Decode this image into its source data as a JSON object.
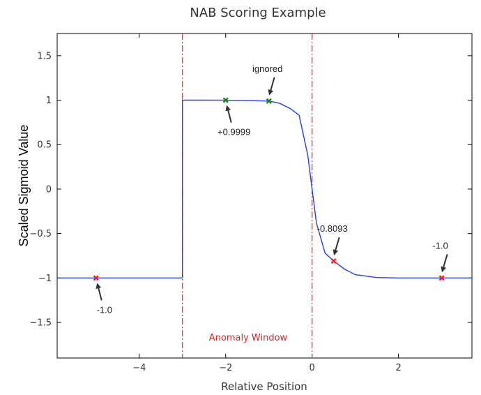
{
  "chart_data": {
    "type": "line",
    "title": "NAB Scoring Example",
    "xlabel": "Relative Position",
    "ylabel": "Scaled Sigmoid Value",
    "xlim": [
      -5.9,
      3.7
    ],
    "ylim": [
      -1.9,
      1.75
    ],
    "xticks": [
      -4,
      -2,
      0,
      2
    ],
    "xtick_labels": [
      "−4",
      "−2",
      "0",
      "2"
    ],
    "yticks": [
      1.5,
      1,
      0.5,
      0,
      -0.5,
      -1,
      -1.5
    ],
    "ytick_labels": [
      "1.5",
      "1",
      "0.5",
      "0",
      "−0.5",
      "−1",
      "−1.5"
    ],
    "grid": false,
    "series": [
      {
        "color": "#1f3ff0",
        "segments": [
          {
            "x": [
              -5.9,
              -3.0
            ],
            "y": [
              -1,
              -1
            ]
          },
          {
            "x": [
              -3.0,
              -3.0,
              -2.5,
              -2.0,
              -1.5,
              -1.0,
              -0.75,
              -0.5,
              -0.3,
              -0.1,
              0.0,
              0.1,
              0.3,
              0.5,
              0.75,
              1.0,
              1.5,
              2.0,
              2.5,
              3.0,
              3.7
            ],
            "y": [
              -1,
              1,
              1.0,
              0.9999,
              0.996,
              0.99,
              0.964,
              0.905,
              0.83,
              0.38,
              0.0,
              -0.38,
              -0.72,
              -0.8093,
              -0.9,
              -0.963,
              -0.995,
              -0.9995,
              -1.0,
              -1.0,
              -1.0
            ]
          }
        ]
      }
    ],
    "vlines": [
      {
        "x": -3,
        "color": "#e8302a",
        "style": "dashdot"
      },
      {
        "x": 0,
        "color": "#e8302a",
        "style": "dashdot"
      }
    ],
    "markers": [
      {
        "x": -5,
        "y": -1,
        "color": "#ee2222",
        "symbol": "x"
      },
      {
        "x": -2,
        "y": 0.9999,
        "color": "#1a8a1a",
        "symbol": "x"
      },
      {
        "x": -1,
        "y": 0.99,
        "color": "#1a8a1a",
        "symbol": "x"
      },
      {
        "x": 0.5,
        "y": -0.8093,
        "color": "#ee2222",
        "symbol": "x"
      },
      {
        "x": 3,
        "y": -1,
        "color": "#ee2222",
        "symbol": "x"
      }
    ],
    "annotations": [
      {
        "text": "-1.0",
        "target": [
          -5,
          -1
        ],
        "side": "below"
      },
      {
        "text": "+0.9999",
        "target": [
          -2,
          0.9999
        ],
        "side": "below"
      },
      {
        "text": "ignored",
        "target": [
          -1,
          0.99
        ],
        "side": "above"
      },
      {
        "text": "-0.8093",
        "target": [
          0.5,
          -0.8093
        ],
        "side": "above"
      },
      {
        "text": "-1.0",
        "target": [
          3,
          -1
        ],
        "side": "above"
      }
    ],
    "region_label": {
      "text": "Anomaly Window",
      "color": "#dd2222"
    }
  }
}
